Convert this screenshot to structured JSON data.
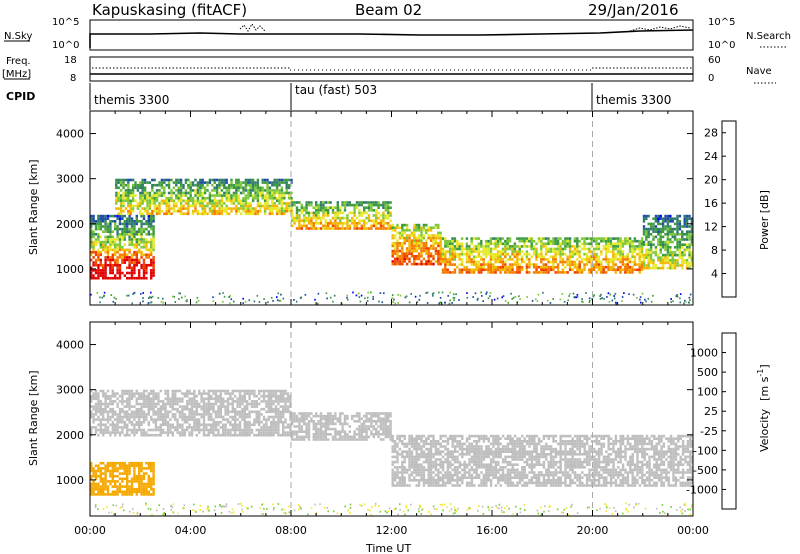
{
  "header": {
    "station": "Kapuskasing (fitACF)",
    "beam": "Beam 02",
    "date": "29/Jan/2016"
  },
  "strip": {
    "nsky_label": "N.Sky",
    "nsky_ticks": [
      "10^5",
      "10^0"
    ],
    "nsearch_label": "N.Search",
    "nsearch_ticks": [
      "10^5",
      "10^0"
    ],
    "freq_label": "Freq.",
    "freq_unit": "[MHz]",
    "freq_ticks": [
      "18",
      "8"
    ],
    "nave_label": "Nave",
    "nave_ticks": [
      "60",
      "0"
    ],
    "cpid_label": "CPID",
    "cpid_segments": [
      {
        "label": "themis 3300",
        "start_hour": 0,
        "end_hour": 8
      },
      {
        "label": "tau (fast) 503",
        "start_hour": 8,
        "end_hour": 20
      },
      {
        "label": "themis 3300",
        "start_hour": 20,
        "end_hour": 24
      }
    ]
  },
  "chart_data": [
    {
      "type": "heatmap",
      "panel": "power",
      "ylabel": "Slant Range [km]",
      "xlabel": "Time UT",
      "ylim": [
        200,
        4500
      ],
      "xlim": [
        0,
        24
      ],
      "x_ticks": [
        "00:00",
        "04:00",
        "08:00",
        "12:00",
        "16:00",
        "20:00",
        "00:00"
      ],
      "y_ticks": [
        1000,
        2000,
        3000,
        4000
      ],
      "vertical_markers_hours": [
        8,
        20
      ],
      "colorbar": {
        "label": "Power [dB]",
        "ticks": [
          "28",
          "24",
          "20",
          "16",
          "12",
          "8",
          "4"
        ],
        "range": [
          0,
          30
        ],
        "colors": [
          "#0000ff",
          "#1e4ca6",
          "#2f7a6a",
          "#3e9a3e",
          "#7cc83a",
          "#e8e82a",
          "#f5b800",
          "#f57a00",
          "#f04000",
          "#e00000"
        ]
      },
      "backscatter_bands": [
        {
          "start_hour": 0.0,
          "end_hour": 2.5,
          "range_km": [
            800,
            1400
          ],
          "power_db": 28
        },
        {
          "start_hour": 0.0,
          "end_hour": 2.5,
          "range_km": [
            1400,
            2200
          ],
          "power_db": 12
        },
        {
          "start_hour": 1.0,
          "end_hour": 8.0,
          "range_km": [
            2200,
            3000
          ],
          "power_db": 14
        },
        {
          "start_hour": 8.0,
          "end_hour": 12.0,
          "range_km": [
            1900,
            2500
          ],
          "power_db": 16
        },
        {
          "start_hour": 12.0,
          "end_hour": 14.0,
          "range_km": [
            1100,
            2000
          ],
          "power_db": 20
        },
        {
          "start_hour": 14.0,
          "end_hour": 22.0,
          "range_km": [
            900,
            1700
          ],
          "power_db": 18
        },
        {
          "start_hour": 22.0,
          "end_hour": 24.0,
          "range_km": [
            1000,
            2200
          ],
          "power_db": 12
        }
      ]
    },
    {
      "type": "heatmap",
      "panel": "velocity",
      "ylabel": "Slant Range [km]",
      "xlabel": "Time UT",
      "ylim": [
        200,
        4500
      ],
      "xlim": [
        0,
        24
      ],
      "x_ticks": [
        "00:00",
        "04:00",
        "08:00",
        "12:00",
        "16:00",
        "20:00",
        "00:00"
      ],
      "y_ticks": [
        1000,
        2000,
        3000,
        4000
      ],
      "vertical_markers_hours": [
        8,
        20
      ],
      "colorbar": {
        "label": "Velocity",
        "unit_label": "[m s",
        "unit_sup": "-1",
        "unit_close": "]",
        "ticks": [
          "1000",
          "500",
          "100",
          "25",
          "-25",
          "-100",
          "-500",
          "-1000"
        ],
        "colors": [
          "#1a3ca8",
          "#2e7a8a",
          "#3c9a3c",
          "#7cd040",
          "#bebebe",
          "#f5e830",
          "#f5a800",
          "#f56a00",
          "#e00000"
        ]
      },
      "backscatter_bands": [
        {
          "start_hour": 0.0,
          "end_hour": 2.5,
          "range_km": [
            700,
            1400
          ],
          "velocity_ms": -300
        },
        {
          "start_hour": 0.0,
          "end_hour": 8.0,
          "range_km": [
            2000,
            3000
          ],
          "velocity_ms": 0
        },
        {
          "start_hour": 8.0,
          "end_hour": 12.0,
          "range_km": [
            1900,
            2500
          ],
          "velocity_ms": 0
        },
        {
          "start_hour": 12.0,
          "end_hour": 24.0,
          "range_km": [
            900,
            2000
          ],
          "velocity_ms": 0
        }
      ]
    }
  ]
}
